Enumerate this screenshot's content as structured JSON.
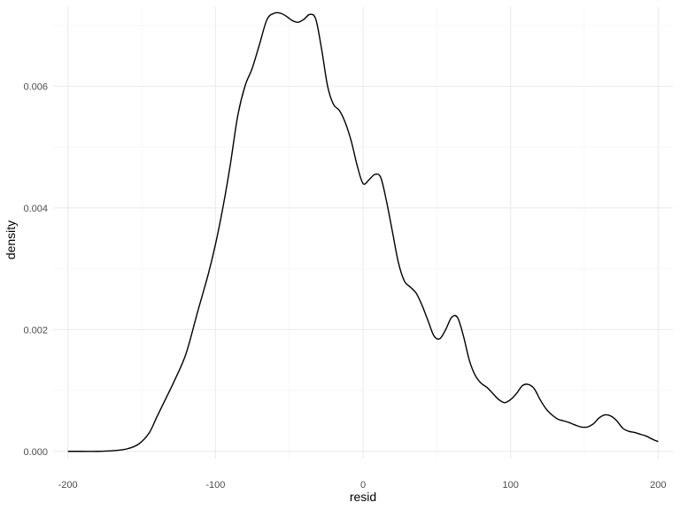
{
  "chart_data": {
    "type": "line",
    "title": "",
    "xlabel": "resid",
    "ylabel": "density",
    "xlim": [
      -210,
      210
    ],
    "ylim": [
      -0.00012,
      0.0073
    ],
    "x_ticks": [
      -200,
      -100,
      0,
      100,
      200
    ],
    "x_tick_labels": [
      "-200",
      "-100",
      "0",
      "100",
      "200"
    ],
    "y_ticks": [
      0,
      0.002,
      0.004,
      0.006
    ],
    "y_tick_labels": [
      "0.000",
      "0.002",
      "0.004",
      "0.006"
    ],
    "x_minor_ticks": [
      -150,
      -50,
      50,
      150
    ],
    "y_minor_ticks": [
      0.001,
      0.003,
      0.005,
      0.007
    ],
    "grid": true,
    "line_color": "#000000",
    "series": [
      {
        "x": [
          -200,
          -190,
          -180,
          -170,
          -160,
          -152,
          -145,
          -140,
          -135,
          -128,
          -120,
          -112,
          -105,
          -100,
          -95,
          -90,
          -85,
          -80,
          -75,
          -70,
          -65,
          -60,
          -56,
          -52,
          -48,
          -44,
          -40,
          -36,
          -32,
          -28,
          -24,
          -20,
          -16,
          -12,
          -8,
          -4,
          0,
          4,
          8,
          12,
          16,
          20,
          24,
          28,
          32,
          36,
          40,
          44,
          48,
          52,
          56,
          60,
          64,
          68,
          72,
          76,
          80,
          84,
          88,
          92,
          96,
          100,
          104,
          108,
          112,
          116,
          120,
          124,
          128,
          132,
          136,
          140,
          144,
          148,
          152,
          156,
          160,
          164,
          168,
          172,
          176,
          180,
          184,
          188,
          192,
          196,
          200
        ],
        "y": [
          0.0,
          0.0,
          0.0,
          1e-05,
          4e-05,
          0.00012,
          0.0003,
          0.00055,
          0.0008,
          0.00115,
          0.0016,
          0.0023,
          0.0029,
          0.0034,
          0.004,
          0.0047,
          0.0055,
          0.006,
          0.0063,
          0.0067,
          0.0071,
          0.0072,
          0.0072,
          0.00715,
          0.00708,
          0.00705,
          0.0071,
          0.00718,
          0.0071,
          0.0066,
          0.006,
          0.0057,
          0.0056,
          0.0054,
          0.0051,
          0.0047,
          0.0044,
          0.00446,
          0.00455,
          0.0045,
          0.0041,
          0.0036,
          0.0031,
          0.0028,
          0.0027,
          0.0026,
          0.0024,
          0.00215,
          0.0019,
          0.00185,
          0.002,
          0.0022,
          0.0022,
          0.0019,
          0.0015,
          0.00125,
          0.00112,
          0.00105,
          0.00095,
          0.00085,
          0.0008,
          0.00085,
          0.00095,
          0.00108,
          0.0011,
          0.00103,
          0.00085,
          0.0007,
          0.0006,
          0.00053,
          0.0005,
          0.00047,
          0.00043,
          0.0004,
          0.0004,
          0.00045,
          0.00055,
          0.0006,
          0.00058,
          0.0005,
          0.00038,
          0.00033,
          0.00031,
          0.00028,
          0.00025,
          0.0002,
          0.00016
        ]
      }
    ]
  }
}
